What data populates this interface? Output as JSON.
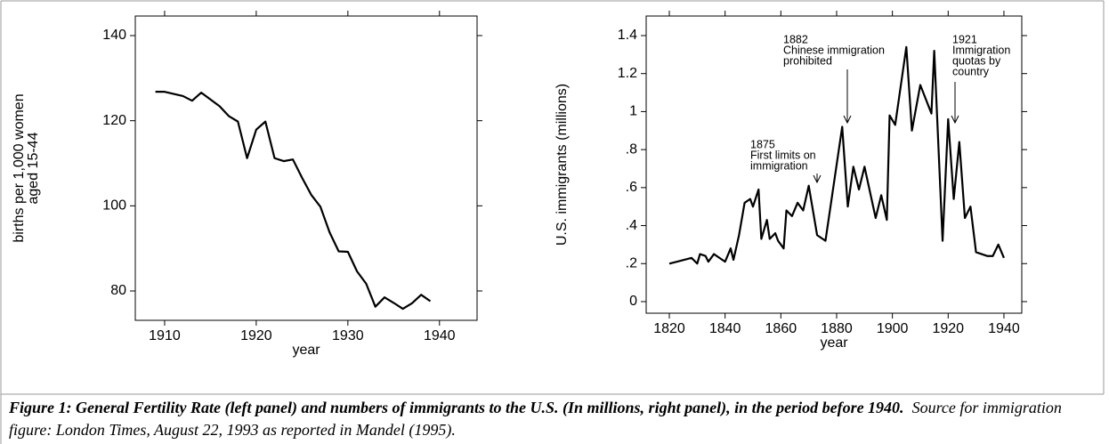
{
  "chart_data": [
    {
      "type": "line",
      "xlabel": "year",
      "ylabel": [
        "births per 1,000 women",
        "aged 15-44"
      ],
      "color": "#000000",
      "x": [
        1909,
        1910,
        1911,
        1912,
        1913,
        1914,
        1915,
        1916,
        1917,
        1918,
        1919,
        1920,
        1921,
        1922,
        1923,
        1924,
        1925,
        1926,
        1927,
        1928,
        1929,
        1930,
        1931,
        1932,
        1933,
        1934,
        1935,
        1936,
        1937,
        1938,
        1939
      ],
      "values": [
        126.8,
        126.8,
        126.3,
        125.8,
        124.7,
        126.6,
        125.0,
        123.4,
        121.1,
        119.8,
        111.2,
        117.9,
        119.8,
        111.2,
        110.5,
        110.9,
        106.6,
        102.6,
        99.8,
        93.8,
        89.3,
        89.2,
        84.6,
        81.7,
        76.3,
        78.5,
        77.2,
        75.8,
        77.1,
        79.1,
        77.6
      ],
      "xlim": [
        1906.8,
        1944.1
      ],
      "ylim": [
        73.1,
        144.6
      ],
      "xticks": [
        1910,
        1920,
        1930,
        1940
      ],
      "yticks": [
        80,
        100,
        120,
        140
      ]
    },
    {
      "type": "line",
      "xlabel": "year",
      "ylabel": [
        "U.S. immigrants (millions)"
      ],
      "color": "#000000",
      "x": [
        1820,
        1828,
        1830,
        1831,
        1833,
        1834,
        1836,
        1838,
        1840,
        1842,
        1843,
        1845,
        1847,
        1849,
        1850,
        1852,
        1853,
        1855,
        1856,
        1858,
        1859,
        1861,
        1862,
        1864,
        1866,
        1868,
        1870,
        1873,
        1876,
        1882,
        1884,
        1886,
        1888,
        1890,
        1894,
        1896,
        1898,
        1899,
        1901,
        1905,
        1907,
        1910,
        1914,
        1915,
        1918,
        1920,
        1922,
        1924,
        1926,
        1928,
        1930,
        1934,
        1936,
        1938,
        1940
      ],
      "values": [
        0.2,
        0.23,
        0.2,
        0.25,
        0.24,
        0.21,
        0.25,
        0.23,
        0.21,
        0.28,
        0.22,
        0.35,
        0.52,
        0.54,
        0.5,
        0.59,
        0.33,
        0.43,
        0.33,
        0.36,
        0.32,
        0.28,
        0.48,
        0.45,
        0.52,
        0.48,
        0.61,
        0.35,
        0.32,
        0.92,
        0.5,
        0.71,
        0.59,
        0.71,
        0.44,
        0.56,
        0.43,
        0.98,
        0.93,
        1.34,
        0.9,
        1.14,
        0.99,
        1.32,
        0.32,
        0.96,
        0.54,
        0.84,
        0.44,
        0.5,
        0.26,
        0.24,
        0.24,
        0.3,
        0.23
      ],
      "xlim": [
        1811.7,
        1946.4
      ],
      "ylim": [
        -0.061,
        1.503
      ],
      "xticks": [
        1820,
        1840,
        1860,
        1880,
        1900,
        1920,
        1940
      ],
      "yticks": [
        0,
        {
          "value": 0.2,
          "label": ".2"
        },
        {
          "value": 0.4,
          "label": ".4"
        },
        {
          "value": 0.6,
          "label": ".6"
        },
        {
          "value": 0.8,
          "label": ".8"
        },
        1,
        1.2,
        1.4
      ],
      "annotations": [
        {
          "lines": [
            "1875",
            "First limits on",
            "immigration"
          ]
        },
        {
          "lines": [
            "1882",
            "Chinese immigration",
            "prohibited"
          ]
        },
        {
          "lines": [
            "1921",
            "Immigration",
            "quotas by",
            "country"
          ]
        }
      ]
    }
  ],
  "caption": {
    "bold": "Figure 1: General Fertility Rate (left panel) and numbers of immigrants to the U.S. (In millions, right panel), in the period before 1940.",
    "normal": "Source for immigration figure: London Times, August 22, 1993 as reported in Mandel (1995)."
  }
}
